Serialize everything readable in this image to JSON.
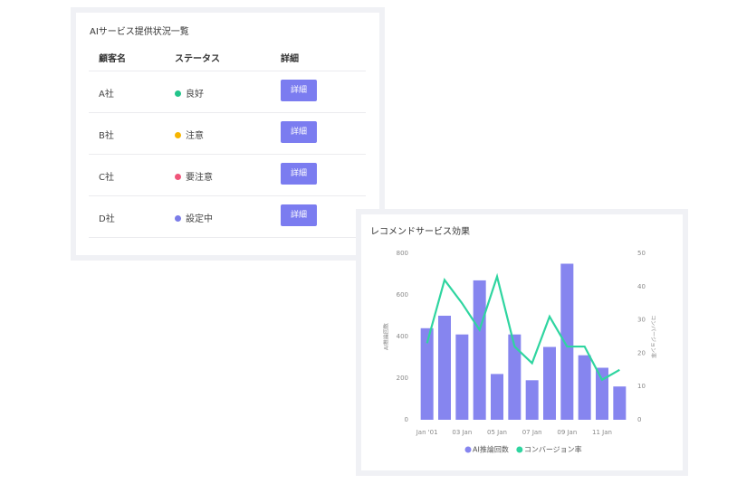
{
  "table_card": {
    "title": "AIサービス提供状況一覧",
    "headers": [
      "顧客名",
      "ステータス",
      "詳細"
    ],
    "rows": [
      [
        "A社",
        "良好",
        "詳細"
      ],
      [
        "B社",
        "注意",
        "詳細"
      ],
      [
        "C社",
        "要注意",
        "詳細"
      ],
      [
        "D社",
        "設定中",
        "詳細"
      ]
    ],
    "status_colors": [
      "#22c48a",
      "#f7b500",
      "#f0557a",
      "#7b7ce8"
    ],
    "button_color": "#7b7cf0"
  },
  "chart_data": {
    "type": "bar_line",
    "title": "レコメンドサービス効果",
    "categories": [
      "Jan '01",
      null,
      "03 Jan",
      null,
      "05 Jan",
      null,
      "07 Jan",
      null,
      "09 Jan",
      null,
      "11 Jan",
      null
    ],
    "series": [
      {
        "name": "AI推論回数",
        "type": "bar",
        "color": "#8685ef",
        "values": [
          440,
          500,
          410,
          670,
          220,
          410,
          190,
          350,
          750,
          310,
          250,
          160
        ]
      },
      {
        "name": "コンバージョン率",
        "type": "line",
        "axis": "y2",
        "color": "#2fd5a0",
        "values": [
          23,
          42,
          35,
          27,
          43,
          22,
          17,
          31,
          22,
          22,
          12,
          15
        ]
      }
    ],
    "y_label": "AI推論回数",
    "y2_label": "コンバージョン率",
    "ylim": [
      0,
      800
    ],
    "yticks": [
      0,
      200,
      400,
      600,
      800
    ],
    "y2lim": [
      0,
      50
    ],
    "y2ticks": [
      0,
      10,
      20,
      30,
      40,
      50
    ],
    "legend": "bottom"
  }
}
